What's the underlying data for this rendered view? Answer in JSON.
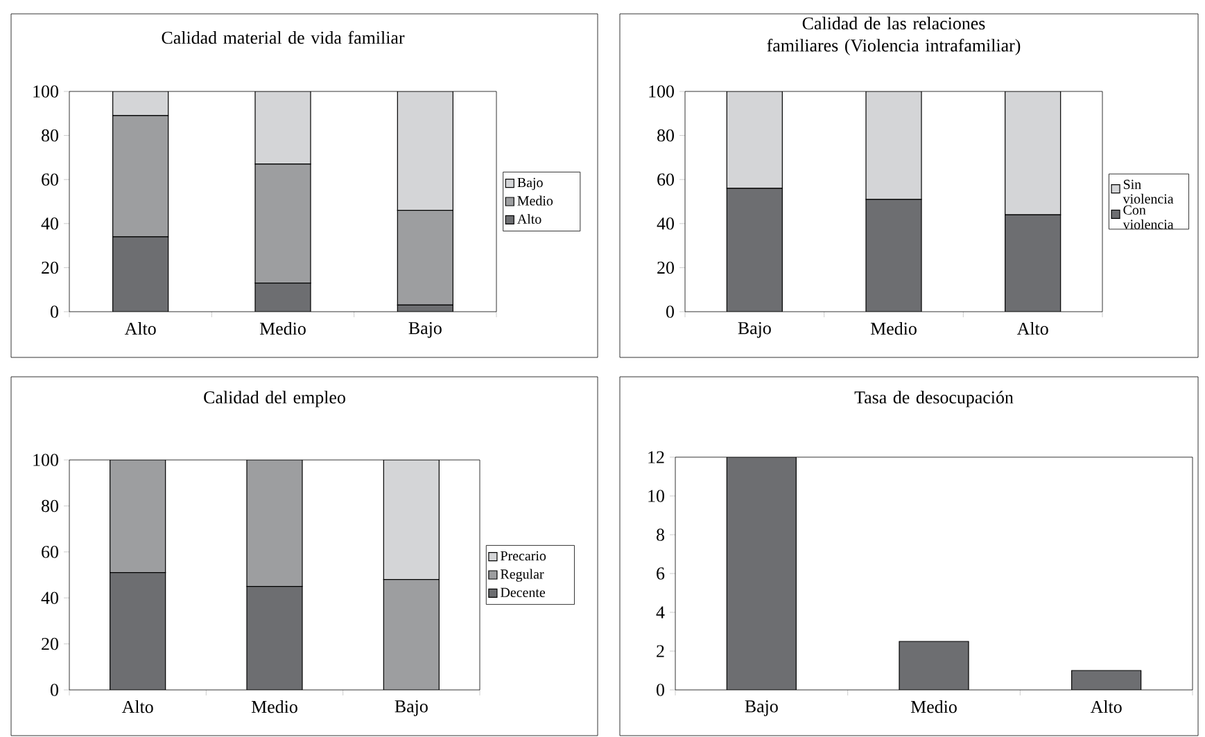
{
  "chart_data": [
    {
      "type": "bar",
      "title": "Calidad material de vida familiar",
      "categories": [
        "Alto",
        "Medio",
        "Bajo"
      ],
      "stacked": true,
      "ylim": [
        0,
        100
      ],
      "yticks": [
        0,
        20,
        40,
        60,
        80,
        100
      ],
      "legend": "right",
      "series": [
        {
          "name": "Alto",
          "color": "#6d6e71",
          "values": [
            34,
            13,
            3
          ]
        },
        {
          "name": "Medio",
          "color": "#9d9ea0",
          "values": [
            55,
            54,
            43
          ]
        },
        {
          "name": "Bajo",
          "color": "#d4d5d7",
          "values": [
            11,
            33,
            54
          ]
        }
      ]
    },
    {
      "type": "bar",
      "title": "Calidad de las relaciones familiares (Violencia intrafamiliar)",
      "categories": [
        "Bajo",
        "Medio",
        "Alto"
      ],
      "stacked": true,
      "ylim": [
        0,
        100
      ],
      "yticks": [
        0,
        20,
        40,
        60,
        80,
        100
      ],
      "legend": "right",
      "series": [
        {
          "name": "Con violencia",
          "color": "#6d6e71",
          "values": [
            56,
            51,
            44
          ]
        },
        {
          "name": "Sin violencia",
          "color": "#d4d5d7",
          "values": [
            44,
            49,
            56
          ]
        }
      ]
    },
    {
      "type": "bar",
      "title": "Calidad del empleo",
      "categories": [
        "Alto",
        "Medio",
        "Bajo"
      ],
      "stacked": true,
      "ylim": [
        0,
        100
      ],
      "yticks": [
        0,
        20,
        40,
        60,
        80,
        100
      ],
      "legend": "right",
      "series": [
        {
          "name": "Decente",
          "color": "#6d6e71",
          "values": [
            51,
            45,
            0
          ]
        },
        {
          "name": "Regular",
          "color": "#9d9ea0",
          "values": [
            49,
            55,
            48
          ]
        },
        {
          "name": "Precario",
          "color": "#d4d5d7",
          "values": [
            0,
            0,
            52
          ]
        }
      ]
    },
    {
      "type": "bar",
      "title": "Tasa de desocupación",
      "categories": [
        "Bajo",
        "Medio",
        "Alto"
      ],
      "color": "#6d6e71",
      "values": [
        12,
        2.5,
        1
      ],
      "ylim": [
        0,
        12
      ],
      "yticks": [
        0,
        2,
        4,
        6,
        8,
        10,
        12
      ]
    }
  ]
}
